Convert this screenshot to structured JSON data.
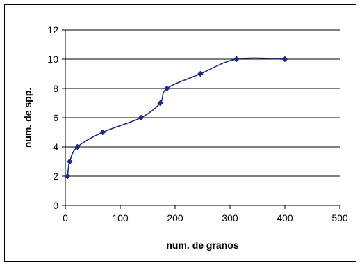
{
  "chart_data": {
    "type": "line",
    "title": "",
    "xlabel": "num. de granos",
    "ylabel": "num. de spp.",
    "xlim": [
      0,
      500
    ],
    "ylim": [
      0,
      12
    ],
    "x_ticks": [
      "0",
      "100",
      "200",
      "300",
      "400",
      "500"
    ],
    "y_ticks": [
      "0",
      "2",
      "4",
      "6",
      "8",
      "10",
      "12"
    ],
    "grid": "horizontal",
    "legend": "none",
    "series": [
      {
        "x": [
          4,
          8,
          22,
          68,
          138,
          173,
          185,
          246,
          312,
          400
        ],
        "y": [
          2,
          3,
          4,
          5,
          6,
          7,
          8,
          9,
          10,
          10
        ],
        "color": "#1f2a7a",
        "marker": "diamond",
        "smooth": true
      }
    ],
    "colors": {
      "gridline": "#000000",
      "axis": "#000000",
      "series": "#1f2a7a"
    }
  }
}
